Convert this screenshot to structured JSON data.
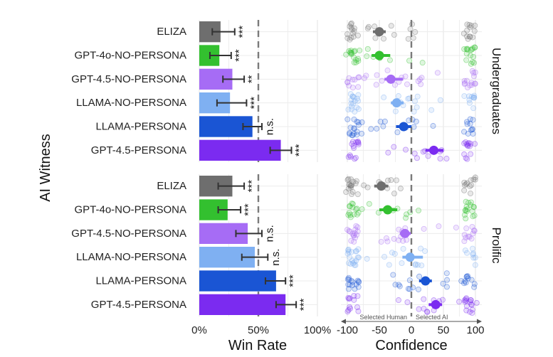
{
  "chart_data": {
    "type": "bar",
    "ylabel": "AI Witness",
    "witnesses": [
      "ELIZA",
      "GPT-4o-NO-PERSONA",
      "GPT-4.5-NO-PERSONA",
      "LLAMA-NO-PERSONA",
      "LLAMA-PERSONA",
      "GPT-4.5-PERSONA"
    ],
    "colors": [
      "#6e6e6e",
      "#33c02f",
      "#a66cf5",
      "#7fb0f2",
      "#1a55d4",
      "#7b2bf0"
    ],
    "facets": [
      {
        "name": "Undergraduates",
        "win_rate": {
          "values": [
            0.18,
            0.17,
            0.28,
            0.26,
            0.45,
            0.69
          ],
          "ci_low": [
            0.11,
            0.09,
            0.2,
            0.15,
            0.37,
            0.6
          ],
          "ci_high": [
            0.3,
            0.27,
            0.38,
            0.4,
            0.53,
            0.78
          ],
          "significance": [
            "***",
            "***",
            "**",
            "***",
            "n.s.",
            "***"
          ]
        },
        "confidence_mean": [
          -50,
          -50,
          -32,
          -23,
          -12,
          35
        ],
        "confidence_ci": [
          [
            -60,
            -40
          ],
          [
            -62,
            -33
          ],
          [
            -42,
            -13
          ],
          [
            -32,
            -12
          ],
          [
            -24,
            0
          ],
          [
            22,
            50
          ]
        ]
      },
      {
        "name": "Prolific",
        "win_rate": {
          "values": [
            0.28,
            0.24,
            0.41,
            0.47,
            0.65,
            0.73
          ],
          "ci_low": [
            0.16,
            0.16,
            0.31,
            0.36,
            0.56,
            0.65
          ],
          "ci_high": [
            0.38,
            0.35,
            0.53,
            0.58,
            0.73,
            0.82
          ],
          "significance": [
            "***",
            "***",
            "n.s.",
            "n.s.",
            "***",
            "***"
          ]
        },
        "confidence_mean": [
          -47,
          -37,
          -10,
          -2,
          22,
          38
        ],
        "confidence_ci": [
          [
            -58,
            -36
          ],
          [
            -50,
            -22
          ],
          [
            -18,
            -1
          ],
          [
            -14,
            18
          ],
          [
            12,
            32
          ],
          [
            27,
            48
          ]
        ]
      }
    ],
    "win_rate_axis": {
      "label": "Win Rate",
      "ticks": [
        0,
        0.5,
        1
      ],
      "tick_labels": [
        "0%",
        "50%",
        "100%"
      ],
      "reference_line": 0.5
    },
    "confidence_axis": {
      "label": "Confidence",
      "ticks": [
        -100,
        -50,
        0,
        50,
        100
      ],
      "tick_labels": [
        "-100",
        "-50",
        "0",
        "50",
        "100"
      ],
      "reference_line": 0,
      "left_annotation": "Selected Human",
      "right_annotation": "Selected AI"
    }
  }
}
